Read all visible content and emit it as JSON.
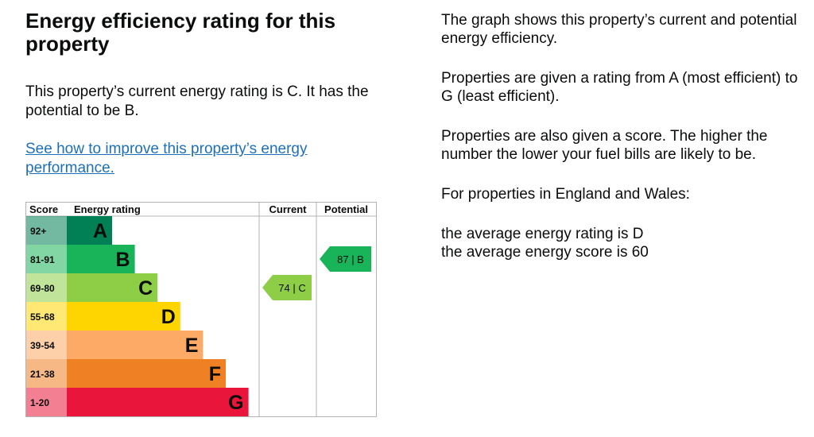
{
  "left": {
    "heading": "Energy efficiency rating for this property",
    "intro": "This property’s current energy rating is C. It has the potential to be B.",
    "link": "See how to improve this property’s energy performance."
  },
  "right": {
    "p1": "The graph shows this property’s current and potential energy efficiency.",
    "p2": "Properties are given a rating from A (most efficient) to G (least efficient).",
    "p3": "Properties are also given a score. The higher the number the lower your fuel bills are likely to be.",
    "p4": "For properties in England and Wales:",
    "avg_rating": "the average energy rating is D",
    "avg_score": "the average energy score is 60"
  },
  "chart_data": {
    "type": "table",
    "headers": [
      "Score",
      "Energy rating",
      "Current",
      "Potential"
    ],
    "bands": [
      {
        "score": "92+",
        "letter": "A",
        "color": "#008054"
      },
      {
        "score": "81-91",
        "letter": "B",
        "color": "#19b459"
      },
      {
        "score": "69-80",
        "letter": "C",
        "color": "#8dce46"
      },
      {
        "score": "55-68",
        "letter": "D",
        "color": "#ffd500"
      },
      {
        "score": "39-54",
        "letter": "E",
        "color": "#fcaa65"
      },
      {
        "score": "21-38",
        "letter": "F",
        "color": "#ef8023"
      },
      {
        "score": "1-20",
        "letter": "G",
        "color": "#e9153b"
      }
    ],
    "current": {
      "score": 74,
      "letter": "C",
      "label": "74 | C",
      "color": "#8dce46"
    },
    "potential": {
      "score": 87,
      "letter": "B",
      "label": "87 | B",
      "color": "#19b459"
    }
  }
}
